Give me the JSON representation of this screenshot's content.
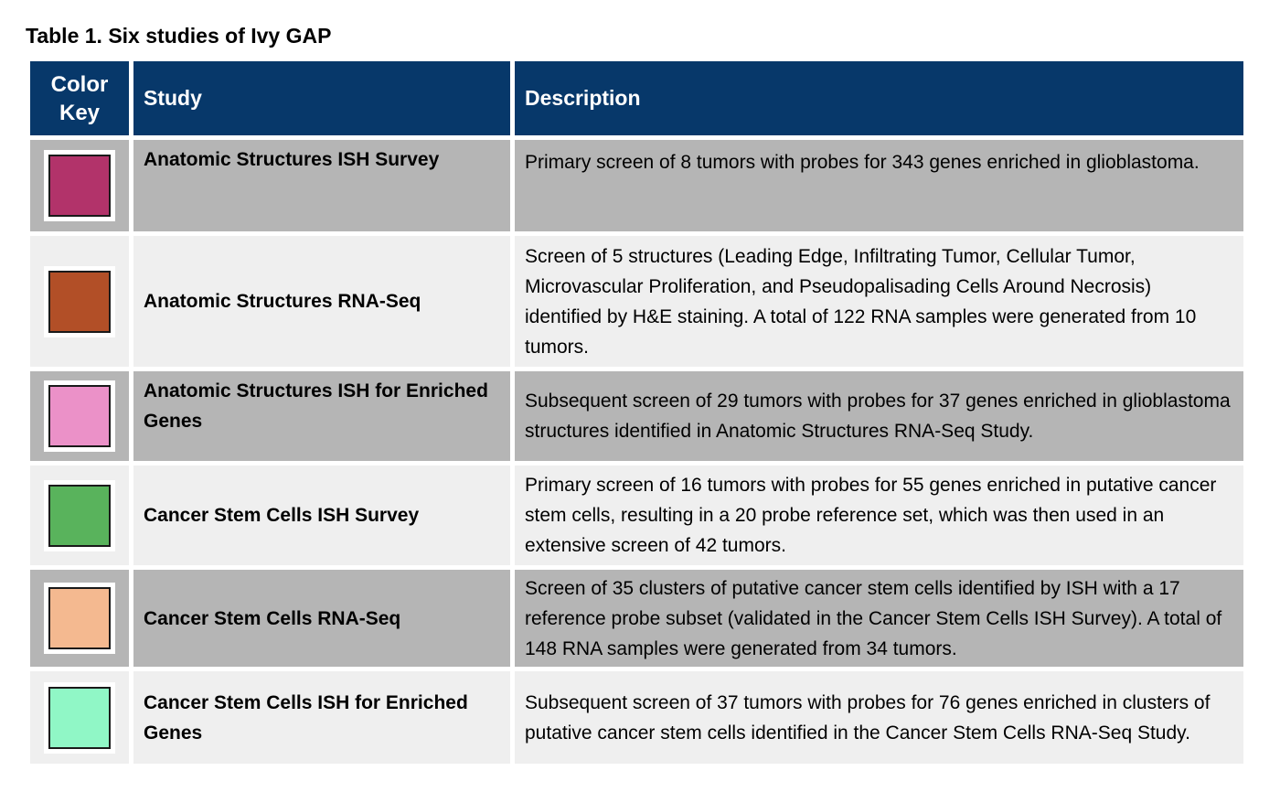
{
  "caption": "Table 1. Six studies of Ivy GAP",
  "header": {
    "key_line1": "Color",
    "key_line2": "Key",
    "study": "Study",
    "description": "Description"
  },
  "rows": [
    {
      "color": "#b2336a",
      "study": "Anatomic Structures ISH Survey",
      "description": "Primary screen of 8 tumors with probes for 343 genes enriched in glioblastoma."
    },
    {
      "color": "#b24f27",
      "study": "Anatomic Structures RNA-Seq",
      "description": "Screen of 5 structures (Leading Edge, Infiltrating Tumor, Cellular Tumor, Microvascular Proliferation, and Pseudopalisading Cells Around Necrosis) identified by H&E staining. A total of 122 RNA samples were generated from 10 tumors."
    },
    {
      "color": "#eb91c8",
      "study": "Anatomic Structures ISH for Enriched Genes",
      "description": "Subsequent screen of 29 tumors with probes for 37 genes enriched in glioblastoma structures identified in Anatomic Structures RNA-Seq Study."
    },
    {
      "color": "#59b35c",
      "study": "Cancer Stem Cells ISH Survey",
      "description": "Primary screen of 16 tumors with probes for 55 genes enriched in putative cancer stem cells, resulting in a 20 probe reference set, which was then used in an extensive screen of 42 tumors."
    },
    {
      "color": "#f4b990",
      "study": "Cancer Stem Cells RNA-Seq",
      "description": "Screen of 35 clusters of putative cancer stem cells identified by ISH with a 17 reference probe subset (validated in the Cancer Stem Cells ISH Survey). A total of 148 RNA samples were generated from 34 tumors."
    },
    {
      "color": "#90f7c6",
      "study": "Cancer Stem Cells ISH for Enriched Genes",
      "description": "Subsequent screen of 37 tumors with probes for 76 genes enriched in clusters of putative cancer stem cells identified in the Cancer Stem Cells RNA-Seq Study."
    }
  ]
}
